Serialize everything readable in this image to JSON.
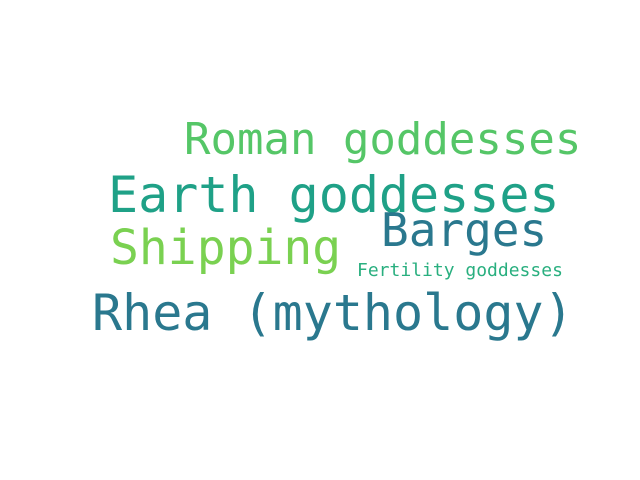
{
  "word_cloud": {
    "words": [
      {
        "text": "Roman goddesses",
        "color": "#55C667"
      },
      {
        "text": "Earth goddesses",
        "color": "#1FA187"
      },
      {
        "text": "Barges",
        "color": "#2A788E"
      },
      {
        "text": "Shipping",
        "color": "#7AD151"
      },
      {
        "text": "Fertility goddesses",
        "color": "#29AF7F"
      },
      {
        "text": "Rhea (mythology)",
        "color": "#2A788E"
      }
    ]
  }
}
